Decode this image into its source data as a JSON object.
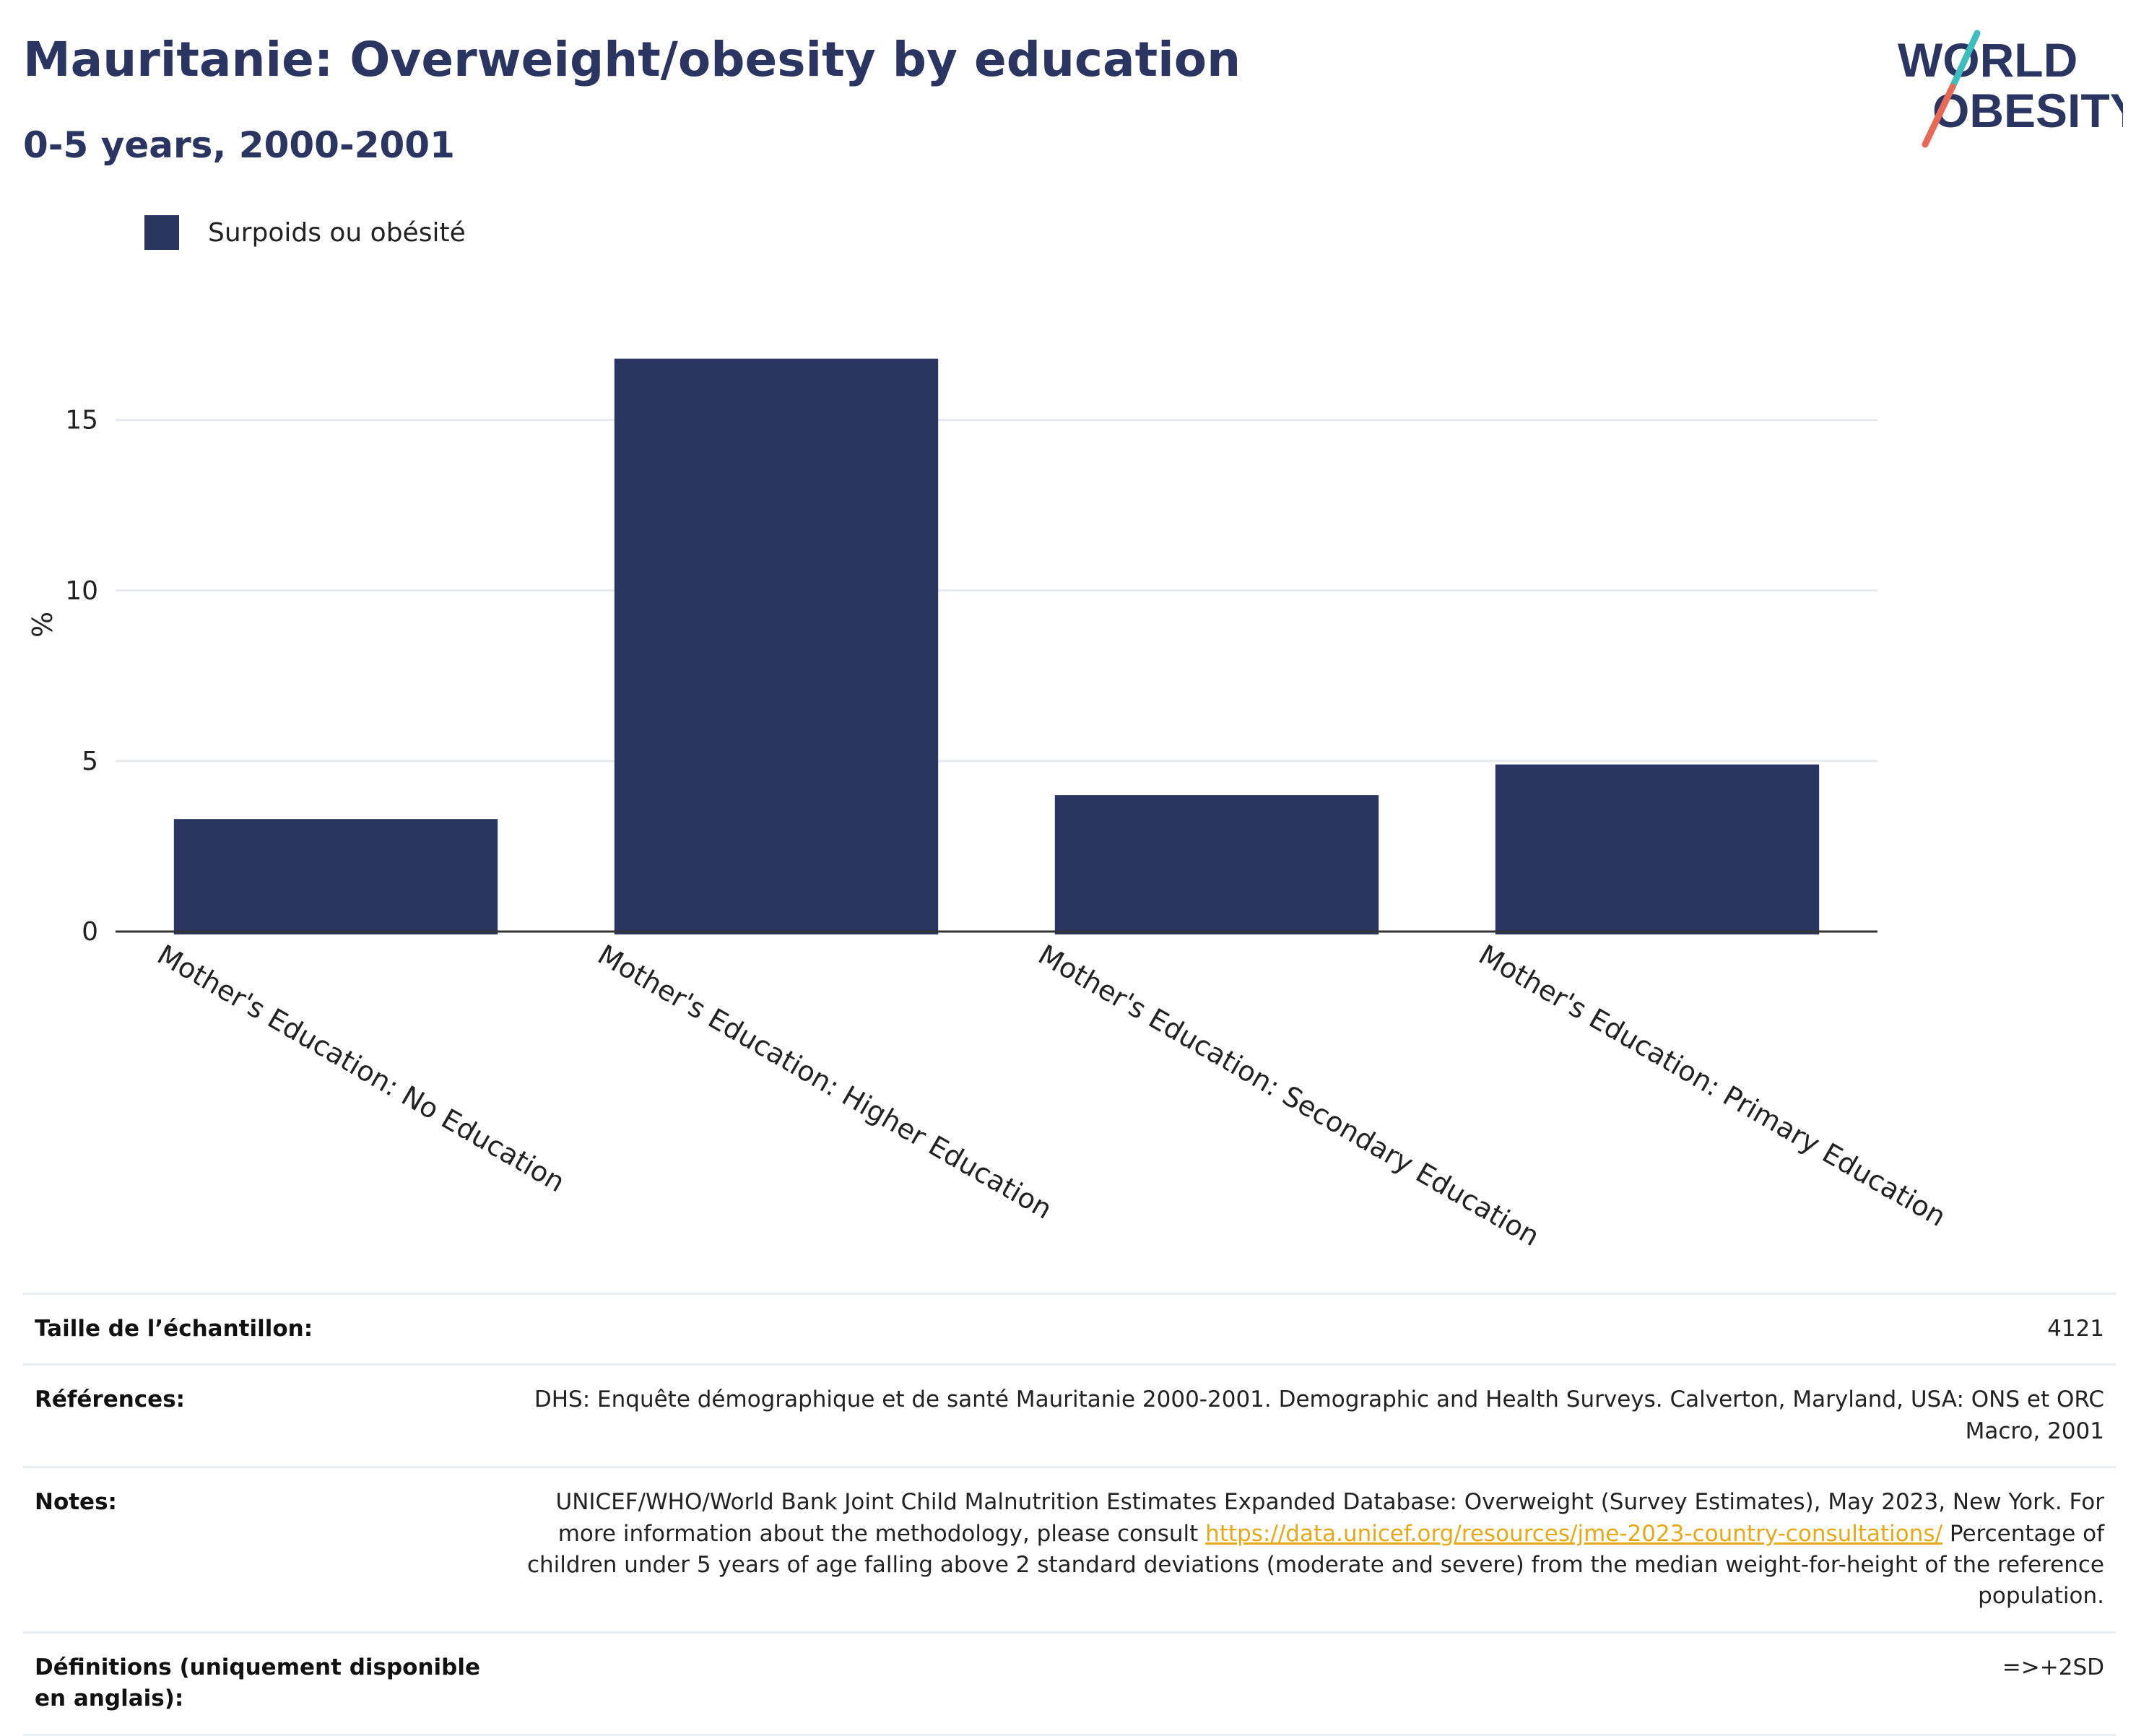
{
  "title": "Mauritanie: Overweight/obesity by education",
  "subtitle": "0-5 years, 2000-2001",
  "logo": {
    "line1": "WORLD",
    "line2": "OBESITY"
  },
  "colors": {
    "bar": "#2a3561",
    "title": "#2a3561",
    "link": "#e8a817",
    "logo_teal": "#3dbdbd",
    "logo_coral": "#e76a56"
  },
  "chart_data": {
    "type": "bar",
    "title": "Mauritanie: Overweight/obesity by education",
    "subtitle": "0-5 years, 2000-2001",
    "xlabel": "",
    "ylabel": "%",
    "ylim": [
      0,
      18
    ],
    "yticks": [
      0,
      5,
      10,
      15
    ],
    "grid": true,
    "legend_position": "top-left",
    "categories": [
      "Mother's Education: No Education",
      "Mother's Education: Higher Education",
      "Mother's Education: Secondary Education",
      "Mother's Education: Primary Education"
    ],
    "series": [
      {
        "name": "Surpoids ou obésité",
        "values": [
          3.3,
          16.8,
          4.0,
          4.9
        ]
      }
    ]
  },
  "info": {
    "sample_label": "Taille de l’échantillon:",
    "sample_value": "4121",
    "refs_label": "Références:",
    "refs_value": "DHS: Enquête démographique et de santé Mauritanie 2000-2001. Demographic and Health Surveys. Calverton, Maryland, USA: ONS et ORC Macro, 2001",
    "notes_label": "Notes:",
    "notes_before": "UNICEF/WHO/World Bank Joint Child Malnutrition Estimates Expanded Database: Overweight (Survey Estimates), May 2023, New York. For more information about the methodology, please consult ",
    "notes_link": "https://data.unicef.org/resources/jme-2023-country-consultations/",
    "notes_after": " Percentage of children under 5 years of age falling above 2 standard deviations (moderate and severe) from the median weight-for-height of the reference population.",
    "defs_label": "Définitions (uniquement disponible en anglais):",
    "defs_value": "=>+2SD"
  }
}
